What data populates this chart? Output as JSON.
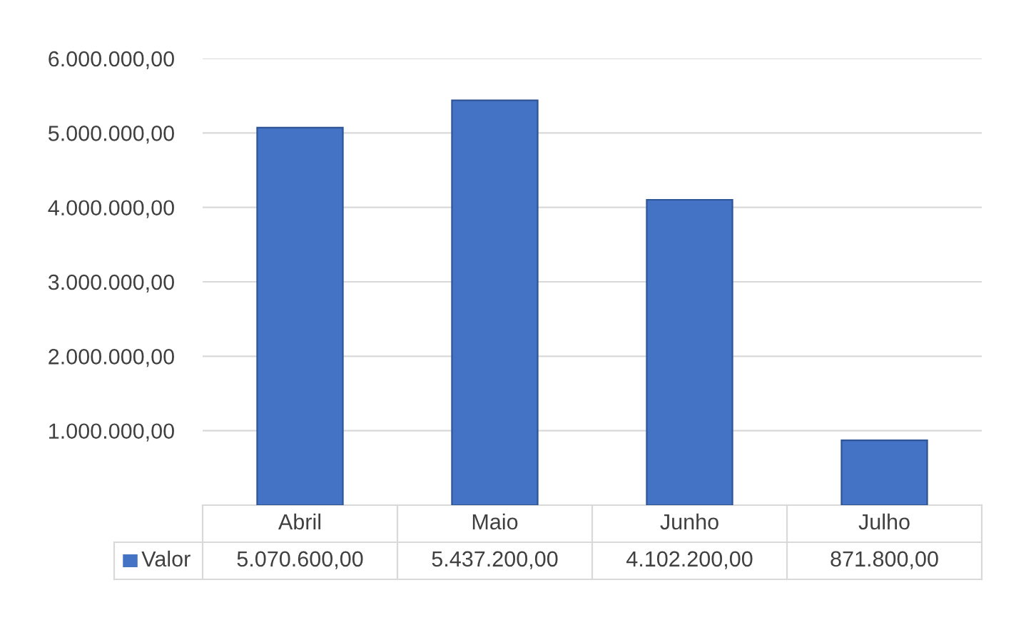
{
  "chart_data": {
    "type": "bar",
    "categories": [
      "Abril",
      "Maio",
      "Junho",
      "Julho"
    ],
    "series": [
      {
        "name": "Valor",
        "color": "#4472c4",
        "values": [
          5070600,
          5437200,
          4102200,
          871800
        ],
        "value_labels": [
          "5.070.600,00",
          "5.437.200,00",
          "4.102.200,00",
          "871.800,00"
        ]
      }
    ],
    "ylim": [
      0,
      6000000
    ],
    "yticks": [
      {
        "value": 1000000,
        "label": "1.000.000,00"
      },
      {
        "value": 2000000,
        "label": "2.000.000,00"
      },
      {
        "value": 3000000,
        "label": "3.000.000,00"
      },
      {
        "value": 4000000,
        "label": "4.000.000,00"
      },
      {
        "value": 5000000,
        "label": "5.000.000,00"
      },
      {
        "value": 6000000,
        "label": "6.000.000,00"
      }
    ],
    "grid": "y"
  }
}
